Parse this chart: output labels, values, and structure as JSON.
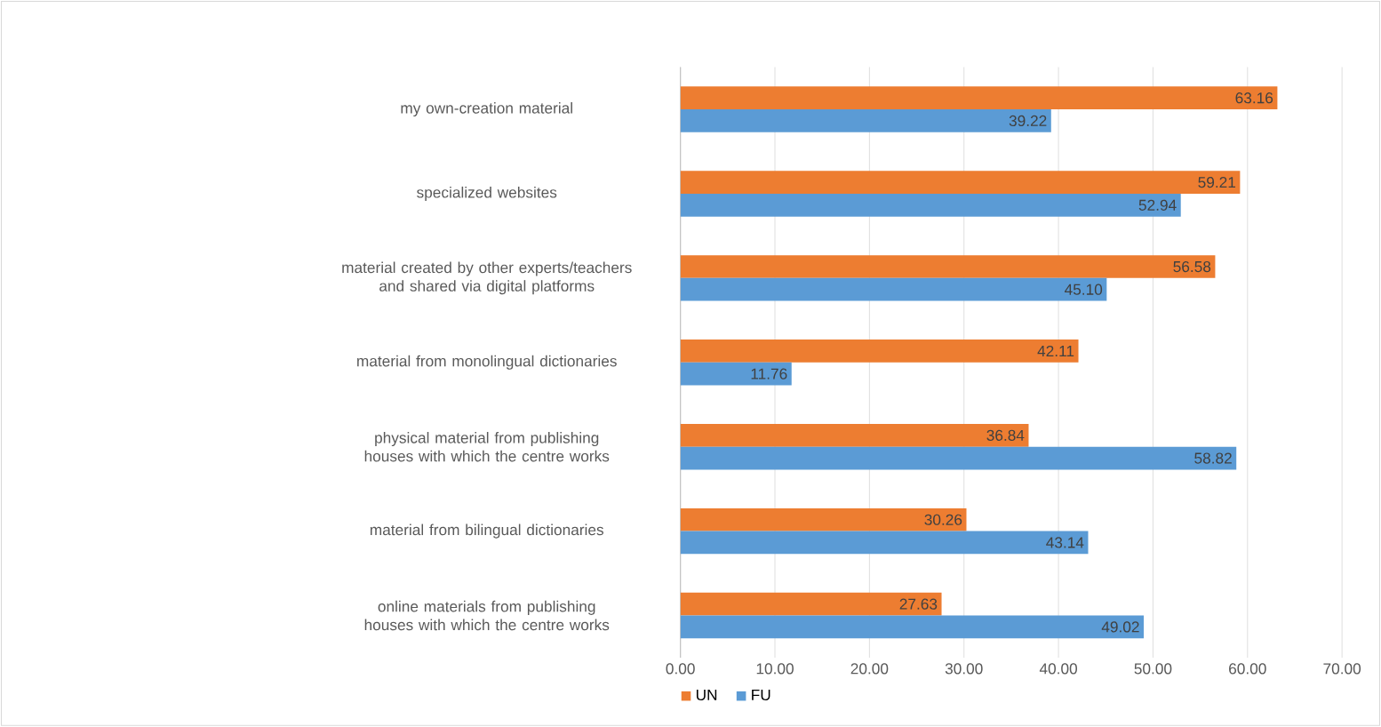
{
  "chart_data": {
    "type": "bar",
    "orientation": "horizontal",
    "categories": [
      "my own-creation material",
      "specialized websites",
      "material created by other experts/teachers and shared via digital platforms",
      "material from monolingual dictionaries",
      "physical material from publishing houses with which the centre works",
      "material from bilingual dictionaries",
      "online materials from publishing houses with which the centre works"
    ],
    "series": [
      {
        "name": "UN",
        "color": "#ed7d31",
        "values": [
          63.16,
          59.21,
          56.58,
          42.11,
          36.84,
          30.26,
          27.63
        ],
        "value_labels": [
          "63.16",
          "59.21",
          "56.58",
          "42.11",
          "36.84",
          "30.26",
          "27.63"
        ]
      },
      {
        "name": "FU",
        "color": "#5b9bd5",
        "values": [
          39.22,
          52.94,
          45.1,
          11.76,
          58.82,
          43.14,
          49.02
        ],
        "value_labels": [
          "39.22",
          "52.94",
          "45.10",
          "11.76",
          "58.82",
          "43.14",
          "49.02"
        ]
      }
    ],
    "xlim": [
      0,
      70
    ],
    "xticks": [
      {
        "value": 0,
        "label": "0.00"
      },
      {
        "value": 10,
        "label": "10.00"
      },
      {
        "value": 20,
        "label": "20.00"
      },
      {
        "value": 30,
        "label": "30.00"
      },
      {
        "value": 40,
        "label": "40.00"
      },
      {
        "value": 50,
        "label": "50.00"
      },
      {
        "value": 60,
        "label": "60.00"
      },
      {
        "value": 70,
        "label": "70.00"
      }
    ],
    "grid": "x",
    "legend": "bottom left"
  }
}
